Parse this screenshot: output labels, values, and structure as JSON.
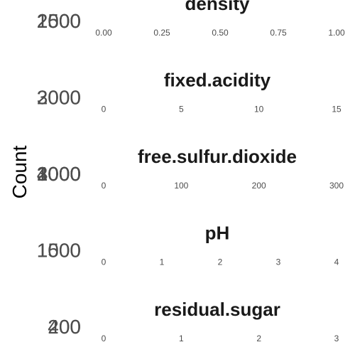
{
  "chart_data": {
    "type": "bar",
    "ylabel": "Count",
    "colors": {
      "title": "#1a1a1a",
      "tick": "#4d4d4d",
      "label": "#000000"
    },
    "panels": [
      {
        "title": "density",
        "ytick_labels": [
          "1500",
          "2000",
          "2500"
        ],
        "xticks": [
          0.0,
          0.25,
          0.5,
          0.75,
          1.0
        ],
        "xtick_labels": [
          "0.00",
          "0.25",
          "0.50",
          "0.75",
          "1.00"
        ],
        "xlim": [
          0.0,
          1.0
        ]
      },
      {
        "title": "fixed.acidity",
        "ytick_labels": [
          "2000",
          "3000"
        ],
        "xticks": [
          0,
          5,
          10,
          15
        ],
        "xtick_labels": [
          "0",
          "5",
          "10",
          "15"
        ],
        "xlim": [
          0,
          15
        ]
      },
      {
        "title": "free.sulfur.dioxide",
        "ytick_labels": [
          "1000",
          "2000",
          "3000",
          "4000"
        ],
        "xticks": [
          0,
          100,
          200,
          300
        ],
        "xtick_labels": [
          "0",
          "100",
          "200",
          "300"
        ],
        "xlim": [
          0,
          300
        ]
      },
      {
        "title": "pH",
        "ytick_labels": [
          "1000",
          "1500"
        ],
        "xticks": [
          0,
          1,
          2,
          3,
          4
        ],
        "xtick_labels": [
          "0",
          "1",
          "2",
          "3",
          "4"
        ],
        "xlim": [
          0,
          4
        ]
      },
      {
        "title": "residual.sugar",
        "ytick_labels": [
          "200",
          "400"
        ],
        "xticks": [
          0,
          1,
          2,
          3
        ],
        "xtick_labels": [
          "0",
          "1",
          "2",
          "3"
        ],
        "xlim": [
          0,
          3
        ]
      }
    ]
  }
}
